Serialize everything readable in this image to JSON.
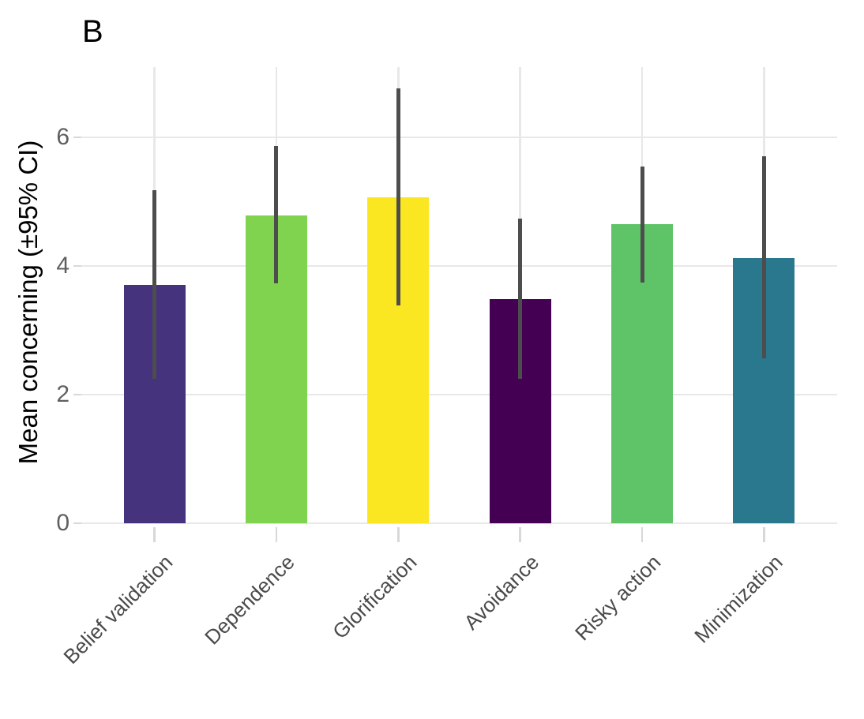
{
  "figure": {
    "background_color": "#ffffff"
  },
  "chart_data": {
    "type": "bar",
    "panel_label": "B",
    "title": "",
    "xlabel": "",
    "ylabel": "Mean concerning (±95% CI)",
    "categories": [
      "Belief validation",
      "Dependence",
      "Glorification",
      "Avoidance",
      "Risky action",
      "Minimization"
    ],
    "values": [
      3.7,
      4.79,
      5.07,
      3.49,
      4.65,
      4.12
    ],
    "ci_lower": [
      2.24,
      3.73,
      3.39,
      2.25,
      3.74,
      2.56
    ],
    "ci_upper": [
      5.18,
      5.86,
      6.76,
      4.74,
      5.55,
      5.7
    ],
    "bar_colors": [
      "#46337e",
      "#7fd34e",
      "#fbe622",
      "#440154",
      "#5fc468",
      "#2a788e"
    ],
    "error_bar_color": "#4d4d4d",
    "yticks": [
      0,
      2,
      4,
      6
    ],
    "ylim": [
      0,
      7.09
    ],
    "grid": "major gridlines only, light gray, horizontal at yticks and vertical at category centers",
    "gridline_color": "#e8e8e8",
    "tick_mark_color": "#d8d8d8",
    "ytick_label_color": "#5f5f5f",
    "xtick_label_color": "#4a4a4a",
    "legend": "none"
  }
}
